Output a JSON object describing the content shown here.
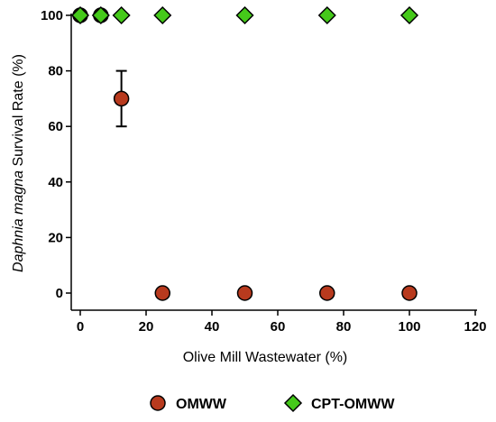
{
  "chart_data": {
    "type": "scatter",
    "title": "",
    "xlabel": "Olive Mill Wastewater (%)",
    "ylabel_italic": "Daphnia magna",
    "ylabel_rest": " Survival Rate (%)",
    "xlim": [
      0,
      120
    ],
    "ylim": [
      0,
      100
    ],
    "x_ticks": [
      "0",
      "20",
      "40",
      "60",
      "80",
      "100",
      "120"
    ],
    "y_ticks": [
      "0",
      "20",
      "40",
      "60",
      "80",
      "100"
    ],
    "grid": false,
    "legend_position": "bottom",
    "series": [
      {
        "name": "OMWW",
        "marker": "circle",
        "color": "#b83a1e",
        "x": [
          0,
          6.25,
          12.5,
          25,
          50,
          75,
          100
        ],
        "y": [
          100,
          100,
          70,
          0,
          0,
          0,
          0
        ],
        "error": [
          0,
          0,
          10,
          0,
          0,
          0,
          0
        ]
      },
      {
        "name": "CPT-OMWW",
        "marker": "diamond",
        "color": "#45c91a",
        "x": [
          0,
          6.25,
          12.5,
          25,
          50,
          75,
          100
        ],
        "y": [
          100,
          100,
          100,
          100,
          100,
          100,
          100
        ],
        "error": [
          0,
          0,
          0,
          0,
          0,
          0,
          0
        ]
      }
    ]
  }
}
